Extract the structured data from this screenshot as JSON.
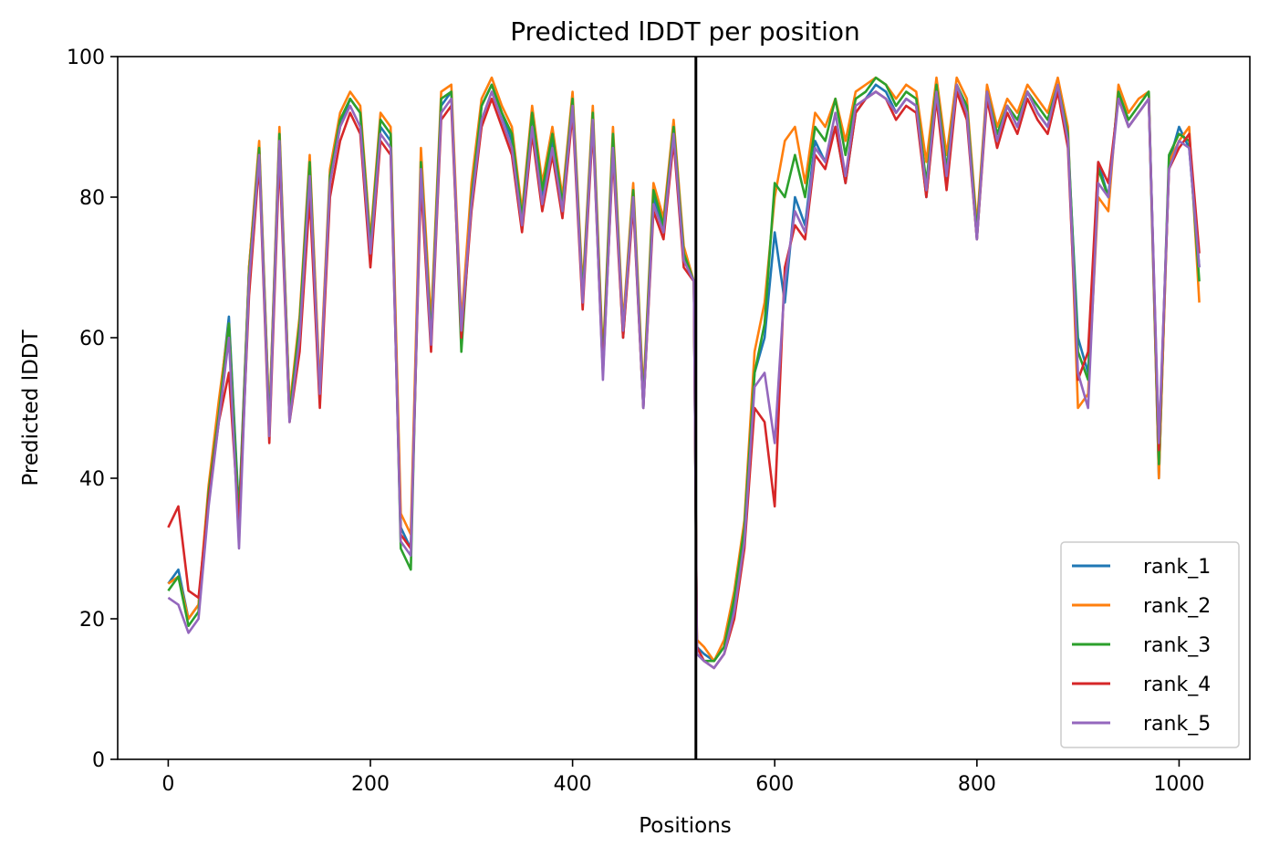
{
  "chart_data": {
    "type": "line",
    "title": "Predicted lDDT per position",
    "xlabel": "Positions",
    "ylabel": "Predicted lDDT",
    "xlim": [
      -50,
      1070
    ],
    "ylim": [
      0,
      100
    ],
    "xticks": [
      0,
      200,
      400,
      600,
      800,
      1000
    ],
    "yticks": [
      0,
      20,
      40,
      60,
      80,
      100
    ],
    "grid": false,
    "legend_position": "lower-right",
    "chain_break_x": 522,
    "x": [
      0,
      10,
      20,
      30,
      40,
      50,
      60,
      70,
      80,
      90,
      100,
      110,
      120,
      130,
      140,
      150,
      160,
      170,
      180,
      190,
      200,
      210,
      220,
      230,
      240,
      250,
      260,
      270,
      280,
      290,
      300,
      310,
      320,
      330,
      340,
      350,
      360,
      370,
      380,
      390,
      400,
      410,
      420,
      430,
      440,
      450,
      460,
      470,
      480,
      490,
      500,
      510,
      520,
      523,
      530,
      540,
      550,
      560,
      570,
      580,
      590,
      600,
      610,
      620,
      630,
      640,
      650,
      660,
      670,
      680,
      690,
      700,
      710,
      720,
      730,
      740,
      750,
      760,
      770,
      780,
      790,
      800,
      810,
      820,
      830,
      840,
      850,
      860,
      870,
      880,
      890,
      900,
      910,
      920,
      930,
      940,
      950,
      960,
      970,
      980,
      990,
      1000,
      1010,
      1020
    ],
    "series": [
      {
        "name": "rank_1",
        "color": "#1f77b4",
        "values": [
          25,
          27,
          20,
          22,
          38,
          50,
          63,
          35,
          70,
          87,
          48,
          89,
          50,
          62,
          85,
          52,
          83,
          90,
          94,
          92,
          72,
          90,
          88,
          33,
          30,
          85,
          60,
          93,
          95,
          60,
          80,
          93,
          96,
          92,
          88,
          76,
          92,
          80,
          88,
          78,
          94,
          65,
          92,
          55,
          88,
          60,
          80,
          50,
          80,
          75,
          90,
          72,
          68,
          16,
          15,
          14,
          16,
          22,
          32,
          55,
          60,
          75,
          65,
          80,
          76,
          88,
          85,
          90,
          82,
          92,
          94,
          96,
          95,
          92,
          94,
          93,
          80,
          95,
          82,
          96,
          92,
          74,
          95,
          88,
          93,
          90,
          95,
          92,
          90,
          96,
          88,
          60,
          55,
          85,
          80,
          95,
          90,
          92,
          94,
          40,
          85,
          90,
          87,
          70
        ]
      },
      {
        "name": "rank_2",
        "color": "#ff7f0e",
        "values": [
          25,
          26,
          20,
          22,
          39,
          51,
          62,
          34,
          70,
          88,
          48,
          90,
          50,
          63,
          86,
          53,
          84,
          92,
          95,
          93,
          74,
          92,
          90,
          35,
          32,
          87,
          62,
          95,
          96,
          62,
          82,
          94,
          97,
          93,
          90,
          78,
          93,
          82,
          90,
          80,
          95,
          67,
          93,
          57,
          90,
          62,
          82,
          52,
          82,
          77,
          91,
          73,
          68,
          17,
          16,
          14,
          17,
          24,
          34,
          58,
          65,
          80,
          88,
          90,
          82,
          92,
          90,
          94,
          88,
          95,
          96,
          97,
          96,
          94,
          96,
          95,
          85,
          97,
          86,
          97,
          94,
          76,
          96,
          90,
          94,
          92,
          96,
          94,
          92,
          97,
          90,
          50,
          52,
          80,
          78,
          96,
          92,
          94,
          95,
          40,
          85,
          88,
          90,
          65
        ]
      },
      {
        "name": "rank_3",
        "color": "#2ca02c",
        "values": [
          24,
          26,
          19,
          21,
          38,
          49,
          62,
          34,
          69,
          87,
          47,
          89,
          49,
          62,
          85,
          51,
          83,
          91,
          94,
          92,
          73,
          91,
          89,
          30,
          27,
          85,
          60,
          94,
          95,
          58,
          80,
          93,
          96,
          92,
          89,
          77,
          92,
          81,
          89,
          79,
          94,
          66,
          92,
          56,
          89,
          61,
          81,
          51,
          81,
          76,
          90,
          72,
          68,
          15,
          14,
          14,
          16,
          23,
          33,
          55,
          62,
          82,
          80,
          86,
          80,
          90,
          88,
          94,
          86,
          94,
          95,
          97,
          96,
          93,
          95,
          94,
          82,
          96,
          84,
          96,
          93,
          75,
          95,
          89,
          93,
          91,
          95,
          93,
          91,
          96,
          89,
          58,
          54,
          84,
          80,
          95,
          91,
          93,
          95,
          42,
          86,
          89,
          88,
          68
        ]
      },
      {
        "name": "rank_4",
        "color": "#d62728",
        "values": [
          33,
          36,
          24,
          23,
          37,
          48,
          55,
          33,
          66,
          85,
          45,
          86,
          48,
          58,
          80,
          50,
          80,
          88,
          92,
          89,
          70,
          88,
          86,
          32,
          30,
          82,
          58,
          91,
          93,
          60,
          78,
          90,
          94,
          90,
          86,
          75,
          89,
          78,
          86,
          77,
          92,
          64,
          90,
          55,
          86,
          60,
          79,
          50,
          78,
          74,
          88,
          70,
          68,
          16,
          14,
          13,
          15,
          20,
          30,
          50,
          48,
          36,
          70,
          76,
          74,
          86,
          84,
          90,
          82,
          92,
          94,
          95,
          94,
          91,
          93,
          92,
          80,
          94,
          81,
          95,
          91,
          74,
          94,
          87,
          92,
          89,
          94,
          91,
          89,
          95,
          87,
          54,
          58,
          85,
          82,
          94,
          90,
          92,
          94,
          44,
          84,
          87,
          89,
          72
        ]
      },
      {
        "name": "rank_5",
        "color": "#9467bd",
        "values": [
          23,
          22,
          18,
          20,
          36,
          48,
          60,
          30,
          68,
          86,
          46,
          88,
          48,
          60,
          83,
          52,
          82,
          90,
          93,
          90,
          72,
          89,
          87,
          31,
          29,
          84,
          59,
          92,
          94,
          61,
          79,
          91,
          95,
          91,
          87,
          76,
          90,
          79,
          87,
          78,
          93,
          65,
          91,
          54,
          87,
          61,
          80,
          50,
          79,
          75,
          89,
          71,
          68,
          15,
          14,
          13,
          15,
          21,
          31,
          53,
          55,
          45,
          68,
          78,
          75,
          87,
          85,
          92,
          83,
          93,
          94,
          95,
          94,
          92,
          94,
          93,
          81,
          95,
          83,
          96,
          92,
          74,
          95,
          88,
          93,
          90,
          95,
          92,
          90,
          96,
          88,
          55,
          50,
          82,
          80,
          94,
          90,
          92,
          94,
          45,
          84,
          88,
          87,
          70
        ]
      }
    ]
  }
}
